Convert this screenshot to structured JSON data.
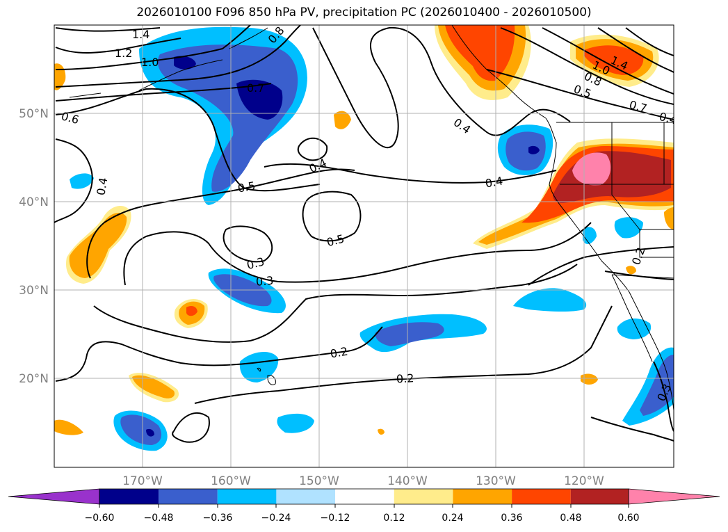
{
  "title": "2026010100 F096 850 hPa PV, precipitation PC (2026010400 - 2026010500)",
  "lat_labels": [
    "50°N",
    "40°N",
    "30°N",
    "20°N"
  ],
  "lon_labels": [
    "170°W",
    "160°W",
    "150°W",
    "140°W",
    "130°W",
    "120°W"
  ],
  "colorbar": {
    "ticks": [
      "−0.60",
      "−0.48",
      "−0.36",
      "−0.24",
      "−0.12",
      "0.12",
      "0.24",
      "0.36",
      "0.48",
      "0.60"
    ],
    "colors": [
      "#9932cc",
      "#00008b",
      "#3a5fcd",
      "#00bfff",
      "#b0e2ff",
      "#ffffff",
      "#ffec8b",
      "#ffa500",
      "#ff4500",
      "#b22222",
      "#ff82ab"
    ]
  },
  "contour_labels": [
    "1.4",
    "1.2",
    "1.0",
    "0.8",
    "0.7",
    "0.6",
    "0.4",
    "0.4",
    "0.5",
    "0.4",
    "0.4",
    "0.5",
    "0.3",
    "0.3",
    "0.2",
    "0.2",
    "1.4",
    "1.0",
    "0.8",
    "0.5",
    "0.7",
    "0.2",
    "0.3",
    "0.4"
  ]
}
